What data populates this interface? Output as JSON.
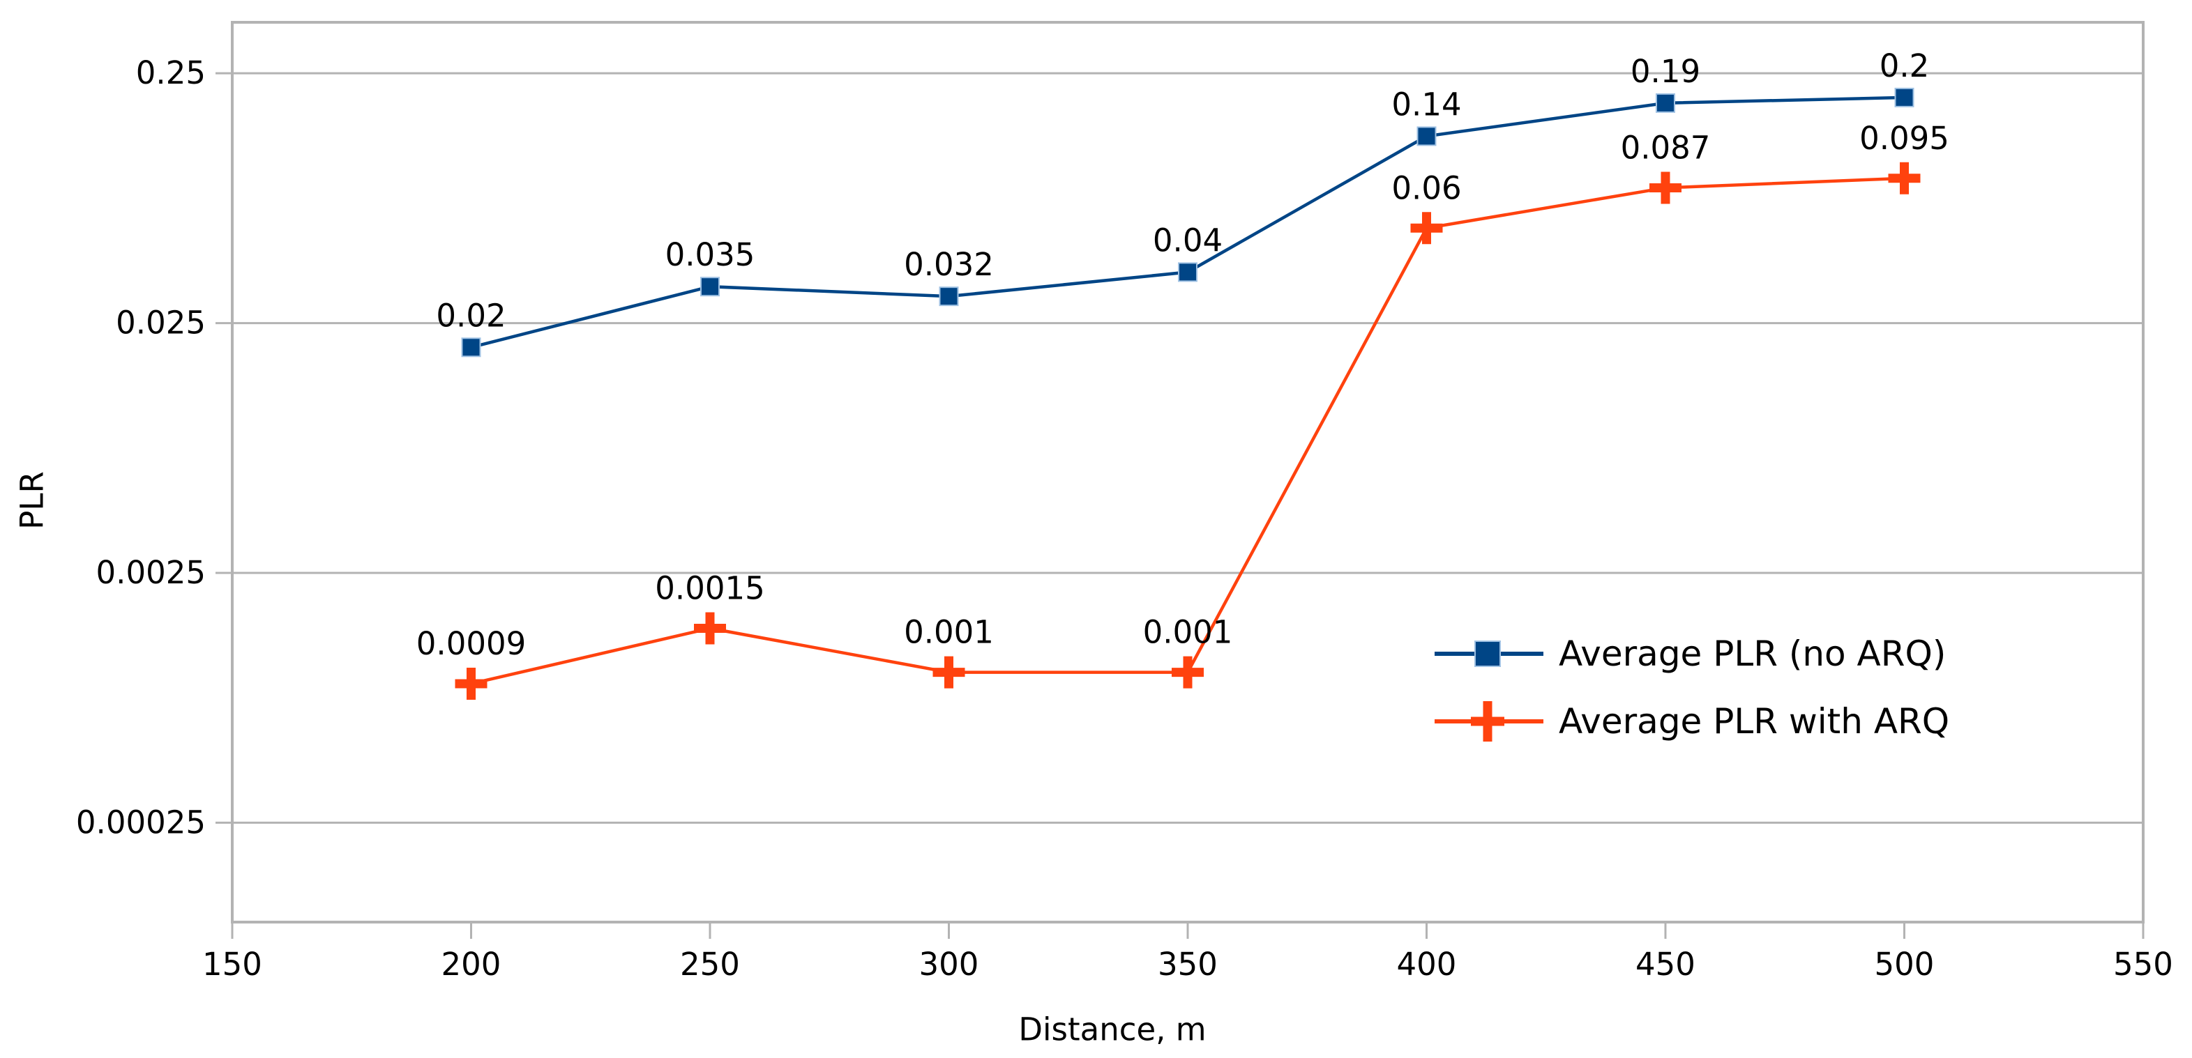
{
  "chart_data": {
    "type": "line",
    "title": "",
    "xlabel": "Distance, m",
    "ylabel": "PLR",
    "x_scale": "linear",
    "y_scale": "log",
    "xlim": [
      150,
      550
    ],
    "ylim": [
      0.0001,
      0.4
    ],
    "grid": "horizontal-major-only",
    "legend_position": "inside-right-middle",
    "x": [
      200,
      250,
      300,
      350,
      400,
      450,
      500
    ],
    "x_ticks": [
      150,
      200,
      250,
      300,
      350,
      400,
      450,
      500,
      550
    ],
    "x_tick_labels": [
      "150",
      "200",
      "250",
      "300",
      "350",
      "400",
      "450",
      "500",
      "550"
    ],
    "y_ticks": [
      0.25,
      0.025,
      0.0025,
      0.00025
    ],
    "y_tick_labels": [
      "0.25",
      "0.025",
      "0.0025",
      "0.00025"
    ],
    "series": [
      {
        "name": "Average PLR (no ARQ)",
        "marker": "square",
        "color": "#004586",
        "marker_edge_color": "#9fc1e3",
        "values": [
          0.02,
          0.035,
          0.032,
          0.04,
          0.14,
          0.19,
          0.2
        ],
        "point_labels": [
          "0.02",
          "0.035",
          "0.032",
          "0.04",
          "0.14",
          "0.19",
          "0.2"
        ]
      },
      {
        "name": "Average PLR with ARQ",
        "marker": "plus",
        "color": "#ff420e",
        "marker_edge_color": "#ff420e",
        "values": [
          0.0009,
          0.0015,
          0.001,
          0.001,
          0.06,
          0.087,
          0.095
        ],
        "point_labels": [
          "0.0009",
          "0.0015",
          "0.001",
          "0.001",
          "0.06",
          "0.087",
          "0.095"
        ]
      }
    ],
    "colors": {
      "background": "#ffffff",
      "grid": "#b3b3b3",
      "border": "#b3b3b3",
      "text": "#000000"
    }
  }
}
